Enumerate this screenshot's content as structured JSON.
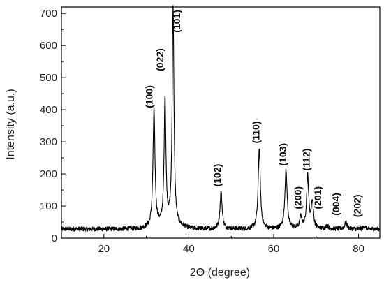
{
  "chart_data": {
    "type": "line",
    "xlabel": "2Θ (degree)",
    "ylabel": "Intensity (a.u.)",
    "xlim": [
      10,
      85
    ],
    "ylim": [
      0,
      720
    ],
    "x_ticks": [
      20,
      40,
      60,
      80
    ],
    "y_ticks": [
      0,
      100,
      200,
      300,
      400,
      500,
      600,
      700
    ],
    "grid": false,
    "baseline": 28,
    "peaks": [
      {
        "x": 31.8,
        "y": 395,
        "width": 0.28,
        "label": "(100)"
      },
      {
        "x": 34.4,
        "y": 425,
        "width": 0.25,
        "label": "(022)"
      },
      {
        "x": 36.3,
        "y": 710,
        "width": 0.25,
        "label": "(101)"
      },
      {
        "x": 47.6,
        "y": 145,
        "width": 0.3,
        "label": "(102)"
      },
      {
        "x": 56.6,
        "y": 280,
        "width": 0.3,
        "label": "(110)"
      },
      {
        "x": 62.9,
        "y": 210,
        "width": 0.33,
        "label": "(103)"
      },
      {
        "x": 66.4,
        "y": 65,
        "width": 0.3,
        "label": "(200)"
      },
      {
        "x": 68.0,
        "y": 190,
        "width": 0.3,
        "label": "(112)"
      },
      {
        "x": 69.1,
        "y": 110,
        "width": 0.3,
        "label": "(201)"
      },
      {
        "x": 72.6,
        "y": 38,
        "width": 0.35,
        "label": ""
      },
      {
        "x": 77.0,
        "y": 48,
        "width": 0.35,
        "label": "(004)"
      },
      {
        "x": 81.4,
        "y": 36,
        "width": 0.35,
        "label": "(202)"
      }
    ],
    "peak_labels": [
      {
        "label": "(100)",
        "x": 31.5,
        "y": 405
      },
      {
        "label": "(022)",
        "x": 34.0,
        "y": 520
      },
      {
        "label": "(101)",
        "x": 38.0,
        "y": 640
      },
      {
        "label": "(102)",
        "x": 47.5,
        "y": 160
      },
      {
        "label": "(110)",
        "x": 56.6,
        "y": 295
      },
      {
        "label": "(103)",
        "x": 63.0,
        "y": 225
      },
      {
        "label": "(200)",
        "x": 66.5,
        "y": 90
      },
      {
        "label": "(112)",
        "x": 68.5,
        "y": 210
      },
      {
        "label": "(201)",
        "x": 71.2,
        "y": 90
      },
      {
        "label": "(004)",
        "x": 75.5,
        "y": 70
      },
      {
        "label": "(202)",
        "x": 80.5,
        "y": 65
      }
    ]
  }
}
